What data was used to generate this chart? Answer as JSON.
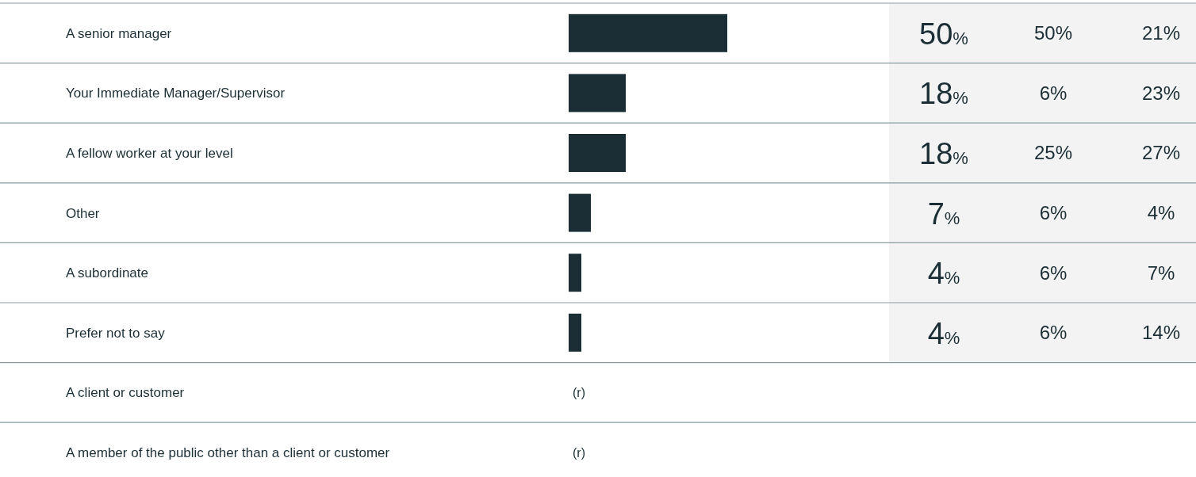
{
  "chart_data": {
    "type": "bar",
    "orientation": "horizontal",
    "categories": [
      "A senior manager",
      "Your Immediate Manager/Supervisor",
      "A fellow worker at your level",
      "Other",
      "A subordinate",
      "Prefer not to say",
      "A client or customer",
      "A member of the public other than a client or customer"
    ],
    "values": [
      50,
      18,
      18,
      7,
      4,
      4,
      null,
      null
    ],
    "value_labels": [
      "50%",
      "18%",
      "18%",
      "7%",
      "4%",
      "4%",
      "(r)",
      "(r)"
    ],
    "color": "#1b2e35",
    "annotations": [
      "50%",
      "21%",
      "6%",
      "23%",
      "25%",
      "27%",
      "6%",
      "4%",
      "6%",
      "7%",
      "6%",
      "14%"
    ]
  }
}
